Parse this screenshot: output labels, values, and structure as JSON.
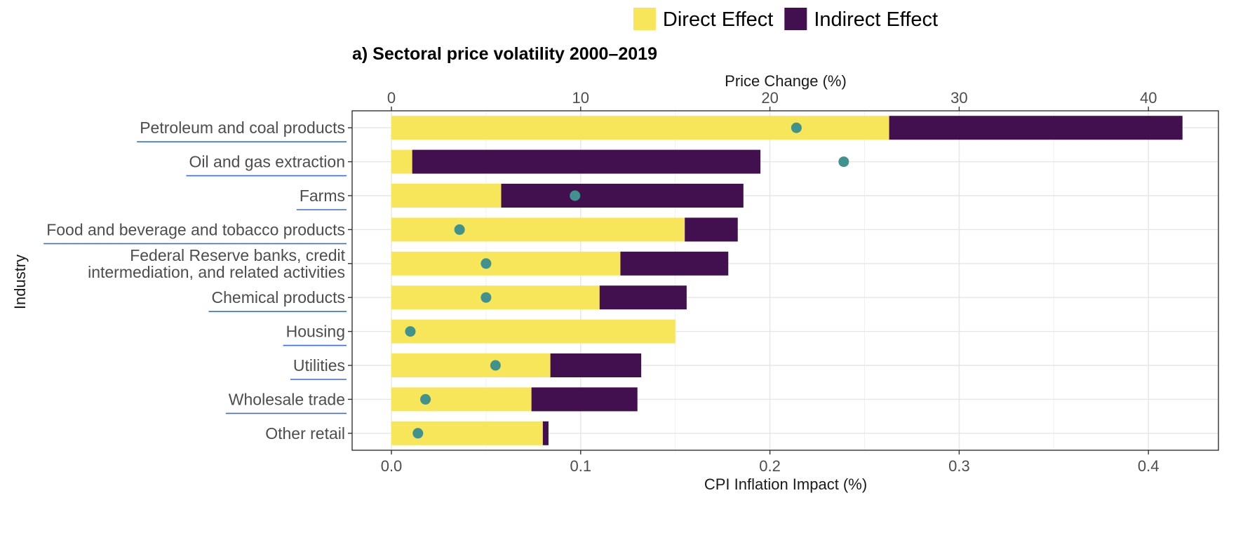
{
  "chart_data": {
    "type": "bar",
    "orientation": "horizontal",
    "stacked": true,
    "title": "a) Sectoral price volatility 2000–2019",
    "xlabel": "CPI Inflation Impact (%)",
    "ylabel": "Industry",
    "x2label": "Price Change (%)",
    "xlim": [
      -0.02,
      0.438
    ],
    "x_ticks": [
      0.0,
      0.1,
      0.2,
      0.3,
      0.4
    ],
    "x_tick_labels": [
      "0.0",
      "0.1",
      "0.2",
      "0.3",
      "0.4"
    ],
    "x2_ticks": [
      0,
      10,
      20,
      30,
      40
    ],
    "x2_tick_labels": [
      "0",
      "10",
      "20",
      "30",
      "40"
    ],
    "x2_scale": 0.01,
    "grid": true,
    "legend_position": "top",
    "categories": [
      [
        "Petroleum and coal products"
      ],
      [
        "Oil and gas extraction"
      ],
      [
        "Farms"
      ],
      [
        "Food and beverage and tobacco products"
      ],
      [
        "Federal Reserve banks, credit",
        "intermediation, and related activities"
      ],
      [
        "Chemical products"
      ],
      [
        "Housing"
      ],
      [
        "Utilities"
      ],
      [
        "Wholesale trade"
      ],
      [
        "Other retail"
      ]
    ],
    "underlined": [
      true,
      true,
      true,
      true,
      false,
      true,
      true,
      true,
      true,
      false
    ],
    "series": [
      {
        "name": "Direct Effect",
        "color": "#f8e65a",
        "values": [
          0.263,
          0.011,
          0.058,
          0.155,
          0.121,
          0.11,
          0.15,
          0.084,
          0.074,
          0.08
        ]
      },
      {
        "name": "Indirect Effect",
        "color": "#43104f",
        "values": [
          0.155,
          0.184,
          0.128,
          0.028,
          0.057,
          0.046,
          0.0,
          0.048,
          0.056,
          0.003
        ]
      }
    ],
    "points": {
      "color": "#40928f",
      "axis": "Price Change (%)",
      "values": [
        21.4,
        23.9,
        9.7,
        3.6,
        5.0,
        5.0,
        1.0,
        5.5,
        1.8,
        1.4
      ]
    },
    "underline_color": "#3b6fd4"
  }
}
